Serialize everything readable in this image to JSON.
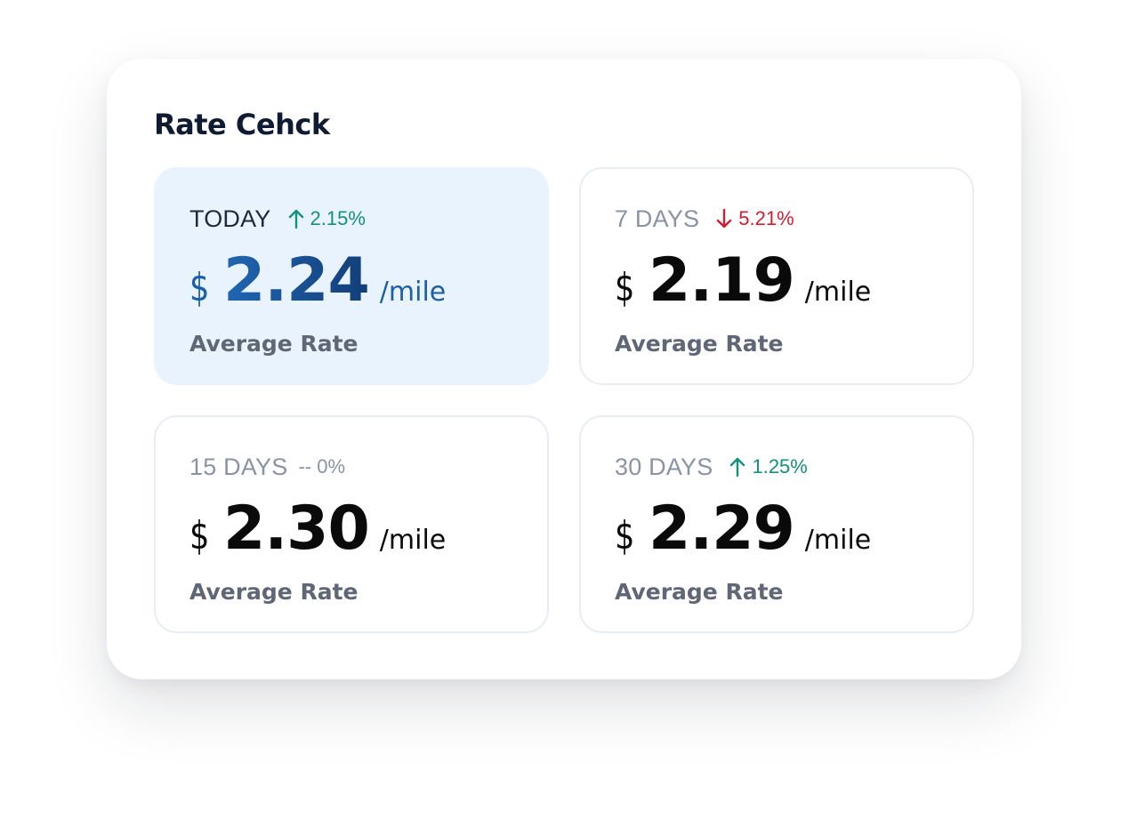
{
  "widget": {
    "title": "Rate Cehck"
  },
  "colors": {
    "positive": "#14907e",
    "negative": "#d31d32",
    "neutral": "#8a93a4",
    "selected_card_bg": "#e9f3fe",
    "selected_value": "#1d5fa6",
    "title": "#0f1b33"
  },
  "cards": [
    {
      "period": "TODAY",
      "trend": "up",
      "trend_icon": "arrow-up-icon",
      "change": "2.15%",
      "currency": "$",
      "value": "2.24",
      "unit": "/mile",
      "caption": "Average Rate",
      "selected": true
    },
    {
      "period": "7 DAYS",
      "trend": "down",
      "trend_icon": "arrow-down-icon",
      "change": "5.21%",
      "currency": "$",
      "value": "2.19",
      "unit": "/mile",
      "caption": "Average Rate",
      "selected": false
    },
    {
      "period": "15 DAYS",
      "trend": "flat",
      "change": "-- 0%",
      "currency": "$",
      "value": "2.30",
      "unit": "/mile",
      "caption": "Average Rate",
      "selected": false
    },
    {
      "period": "30 DAYS",
      "trend": "up",
      "trend_icon": "arrow-up-icon",
      "change": "1.25%",
      "currency": "$",
      "value": "2.29",
      "unit": "/mile",
      "caption": "Average Rate",
      "selected": false
    }
  ]
}
